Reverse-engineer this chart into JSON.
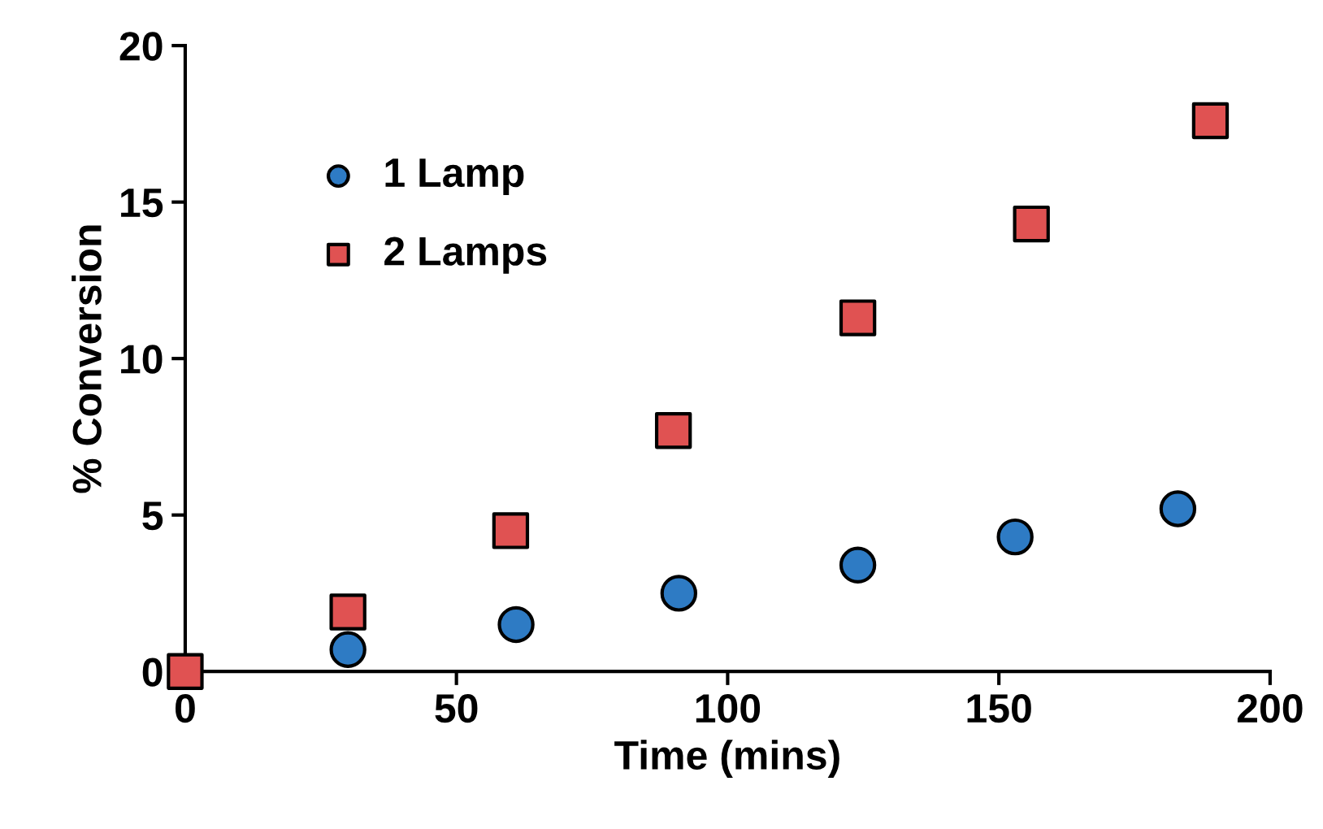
{
  "chart_data": {
    "type": "scatter",
    "xlabel": "Time (mins)",
    "ylabel": "% Conversion",
    "xlim": [
      0,
      200
    ],
    "xticks": [
      0,
      50,
      100,
      150,
      200
    ],
    "ylim": [
      0,
      20
    ],
    "yticks": [
      0,
      5,
      10,
      15,
      20
    ],
    "grid": false,
    "legend": "top left",
    "series": [
      {
        "name": "1 Lamp",
        "color": "#2e7bc4",
        "marker": "circle",
        "x": [
          30,
          61,
          91,
          124,
          153,
          183
        ],
        "values": [
          0.7,
          1.5,
          2.5,
          3.4,
          4.3,
          5.2
        ]
      },
      {
        "name": "2 Lamps",
        "color": "#e05252",
        "marker": "square",
        "x": [
          0,
          30,
          60,
          90,
          124,
          156,
          189
        ],
        "values": [
          0,
          1.9,
          4.5,
          7.7,
          11.3,
          14.3,
          17.6
        ]
      }
    ]
  }
}
